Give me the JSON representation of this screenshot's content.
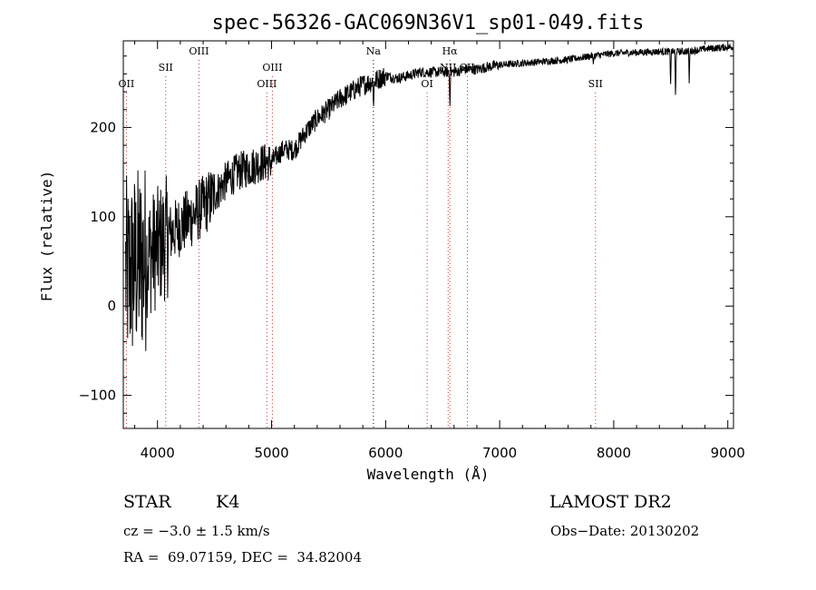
{
  "chart_data": {
    "type": "line",
    "title": "spec-56326-GAC069N36V1_sp01-049.fits",
    "xlabel": "Wavelength (Å)",
    "ylabel": "Flux (relative)",
    "xlim": [
      3700,
      9050
    ],
    "ylim": [
      -137,
      297
    ],
    "xticks": [
      4000,
      5000,
      6000,
      7000,
      8000,
      9000
    ],
    "xtick_labels": [
      "4000",
      "5000",
      "6000",
      "7000",
      "8000",
      "9000"
    ],
    "yticks": [
      -100,
      0,
      100,
      200
    ],
    "ytick_labels": [
      "−100",
      "0",
      "100",
      "200"
    ],
    "grid": false,
    "line_color": "#000000",
    "marker_color": "#cc3333",
    "series": [
      {
        "x": [
          3700,
          3750,
          3800,
          3850,
          3900,
          3950,
          4000,
          4100,
          4200,
          4300,
          4400,
          4500,
          4600,
          4700,
          4800,
          4900,
          5000,
          5100,
          5200,
          5300,
          5400,
          5500,
          5600,
          5700,
          5800,
          5900,
          6000,
          6100,
          6200,
          6300,
          6400,
          6500,
          6600,
          6700,
          6800,
          6900,
          7000,
          7200,
          7400,
          7600,
          7800,
          8000,
          8200,
          8400,
          8500,
          8600,
          8700,
          8800,
          8900,
          9000,
          9050
        ],
        "y": [
          40,
          35,
          45,
          50,
          55,
          60,
          65,
          80,
          90,
          100,
          112,
          125,
          140,
          150,
          155,
          160,
          162,
          175,
          175,
          195,
          210,
          220,
          232,
          240,
          248,
          252,
          258,
          255,
          258,
          262,
          262,
          262,
          262,
          265,
          265,
          268,
          270,
          272,
          274,
          276,
          280,
          283,
          284,
          285,
          285,
          285,
          286,
          288,
          289,
          290,
          290
        ]
      }
    ],
    "absorption_features": [
      {
        "x": 5895,
        "depth": 30
      },
      {
        "x": 6563,
        "depth": 40
      },
      {
        "x": 8498,
        "depth": 40
      },
      {
        "x": 8542,
        "depth": 60
      },
      {
        "x": 8662,
        "depth": 40
      },
      {
        "x": 7820,
        "depth": 10
      }
    ],
    "line_markers": [
      {
        "label": "OII",
        "x": 3727,
        "row": 2,
        "color": "#cc3333"
      },
      {
        "label": "SII",
        "x": 4072,
        "row": 1,
        "color": "#cc3333"
      },
      {
        "label": "OIII",
        "x": 4363,
        "row": 0,
        "color": "#cc3333"
      },
      {
        "label": "OIII",
        "x": 4959,
        "row": 2,
        "color": "#cc3333"
      },
      {
        "label": "OIII",
        "x": 5007,
        "row": 1,
        "color": "#cc3333"
      },
      {
        "label": "Na",
        "x": 5893,
        "row": 0,
        "color": "#000000"
      },
      {
        "label": "OI",
        "x": 6364,
        "row": 2,
        "color": "#cc3333"
      },
      {
        "label": "Hα",
        "x": 6563,
        "row": 0,
        "color": "#cc3333"
      },
      {
        "label": "NII",
        "x": 6548,
        "row": 1,
        "color": "#cc3333"
      },
      {
        "label": "SII",
        "x": 6717,
        "row": 1,
        "color": "#cc3333"
      },
      {
        "label": "SII",
        "x": 7840,
        "row": 2,
        "color": "#cc3333"
      }
    ]
  },
  "footer": {
    "class_label": "STAR",
    "subclass": "K4",
    "survey": "LAMOST DR2",
    "redshift": "cz = −3.0 ± 1.5 km/s",
    "obs_date": "Obs−Date: 20130202",
    "coords": "RA =  69.07159, DEC =  34.82004"
  }
}
